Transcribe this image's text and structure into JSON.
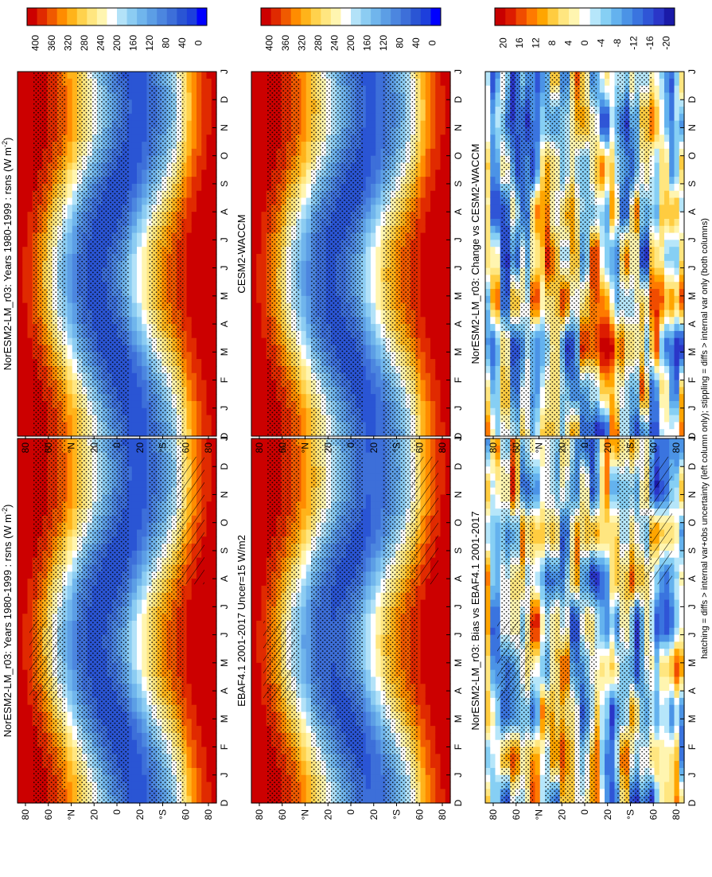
{
  "colors": {
    "abs_scale": [
      "#0000ff",
      "#1d3fdc",
      "#2a55d4",
      "#3d6fd9",
      "#4c86df",
      "#5c9ee5",
      "#70b5ec",
      "#8cccf2",
      "#b3e2f8",
      "#ffffff",
      "#fff5b0",
      "#ffe680",
      "#ffd24d",
      "#ffb31a",
      "#ff8c00",
      "#f05a00",
      "#e02a00",
      "#cc0000"
    ],
    "diff_scale": [
      "#1a1aa8",
      "#2a36c8",
      "#2f55d6",
      "#3a74df",
      "#4b93e6",
      "#64b2ee",
      "#86cff4",
      "#b6e6fa",
      "#ffffff",
      "#fff5b0",
      "#ffe680",
      "#ffcc40",
      "#ffa500",
      "#ff7a00",
      "#f04c00",
      "#dd1c00",
      "#c80000"
    ]
  },
  "footer_text": "hatching = diffs > internal var+obs uncertainty (left column only); stippling = diffs > internal var only (both columns)",
  "chart_data": [
    {
      "id": "top-left",
      "type": "heatmap",
      "kind": "abs",
      "title": "NorESM2-LM_r03: Years 1980-1999 : rsns (W m",
      "title_sup": "-2",
      "title_end": ")",
      "hatching": true,
      "x_ticks": [
        "D",
        "J",
        "F",
        "M",
        "A",
        "M",
        "J",
        "J",
        "A",
        "S",
        "O",
        "N",
        "D",
        "J"
      ],
      "y_ticks": [
        "80",
        "60",
        "°N",
        "20",
        "0",
        "20",
        "°S",
        "60",
        "80"
      ],
      "colorbar": {
        "labels": [
          "400",
          "360",
          "320",
          "280",
          "240",
          "200",
          "160",
          "120",
          "80",
          "40",
          "0"
        ],
        "min": 0,
        "max": 420
      },
      "field_params": {
        "amp": 370,
        "lat_shift": 23.5
      }
    },
    {
      "id": "top-right",
      "type": "heatmap",
      "kind": "abs",
      "title": "NorESM2-LM_r03: Years 1980-1999 : rsns (W m",
      "title_sup": "-2",
      "title_end": ")",
      "hatching": false,
      "x_ticks": [
        "D",
        "J",
        "F",
        "M",
        "A",
        "M",
        "J",
        "J",
        "A",
        "S",
        "O",
        "N",
        "D",
        "J"
      ],
      "y_ticks": [
        "80",
        "60",
        "°N",
        "20",
        "0",
        "20",
        "°S",
        "60",
        "80"
      ],
      "colorbar": {
        "labels": [
          "400",
          "360",
          "320",
          "280",
          "240",
          "200",
          "160",
          "120",
          "80",
          "40",
          "0"
        ],
        "min": 0,
        "max": 420
      },
      "field_params": {
        "amp": 370,
        "lat_shift": 23.5
      }
    },
    {
      "id": "middle-left",
      "type": "heatmap",
      "kind": "abs",
      "title": "EBAF4.1 2001-2017 Uncer=15 W/m2",
      "title_sup": "",
      "title_end": "",
      "hatching": true,
      "x_ticks": [
        "D",
        "J",
        "F",
        "M",
        "A",
        "M",
        "J",
        "J",
        "A",
        "S",
        "O",
        "N",
        "D",
        "J"
      ],
      "y_ticks": [
        "80",
        "60",
        "°N",
        "20",
        "0",
        "20",
        "°S",
        "60",
        "80"
      ],
      "colorbar": {
        "labels": [
          "400",
          "360",
          "320",
          "280",
          "240",
          "200",
          "160",
          "120",
          "80",
          "40",
          "0"
        ],
        "min": 0,
        "max": 420
      },
      "field_params": {
        "amp": 360,
        "lat_shift": 23.5
      }
    },
    {
      "id": "middle-right",
      "type": "heatmap",
      "kind": "abs",
      "title": "CESM2-WACCM",
      "title_sup": "",
      "title_end": "",
      "hatching": false,
      "x_ticks": [
        "D",
        "J",
        "F",
        "M",
        "A",
        "M",
        "J",
        "J",
        "A",
        "S",
        "O",
        "N",
        "D",
        "J"
      ],
      "y_ticks": [
        "80",
        "60",
        "°N",
        "20",
        "0",
        "20",
        "°S",
        "60",
        "80"
      ],
      "colorbar": {
        "labels": [
          "400",
          "360",
          "320",
          "280",
          "240",
          "200",
          "160",
          "120",
          "80",
          "40",
          "0"
        ],
        "min": 0,
        "max": 420
      },
      "field_params": {
        "amp": 365,
        "lat_shift": 23.5
      }
    },
    {
      "id": "bottom-left",
      "type": "heatmap",
      "kind": "diff",
      "title": "NorESM2-LM_r03: Bias vs EBAF4.1 2001-2017",
      "title_sup": "",
      "title_end": "",
      "hatching": true,
      "x_ticks": [
        "D",
        "J",
        "F",
        "M",
        "A",
        "M",
        "J",
        "J",
        "A",
        "S",
        "O",
        "N",
        "D",
        "J"
      ],
      "y_ticks": [
        "80",
        "60",
        "°N",
        "20",
        "0",
        "20",
        "°S",
        "60",
        "80"
      ],
      "colorbar": {
        "labels": [
          "20",
          "16",
          "12",
          "8",
          "4",
          "0",
          "-4",
          "-8",
          "-12",
          "-16",
          "-20"
        ],
        "min": -22,
        "max": 22
      },
      "field_params": {
        "seed": 1
      }
    },
    {
      "id": "bottom-right",
      "type": "heatmap",
      "kind": "diff",
      "title": "NorESM2-LM_r03: Change vs CESM2-WACCM",
      "title_sup": "",
      "title_end": "",
      "hatching": false,
      "x_ticks": [
        "D",
        "J",
        "F",
        "M",
        "A",
        "M",
        "J",
        "J",
        "A",
        "S",
        "O",
        "N",
        "D",
        "J"
      ],
      "y_ticks": [
        "80",
        "60",
        "°N",
        "20",
        "0",
        "20",
        "°S",
        "60",
        "80"
      ],
      "colorbar": {
        "labels": [
          "20",
          "16",
          "12",
          "8",
          "4",
          "0",
          "-4",
          "-8",
          "-12",
          "-16",
          "-20"
        ],
        "min": -22,
        "max": 22
      },
      "field_params": {
        "seed": 2
      }
    }
  ]
}
